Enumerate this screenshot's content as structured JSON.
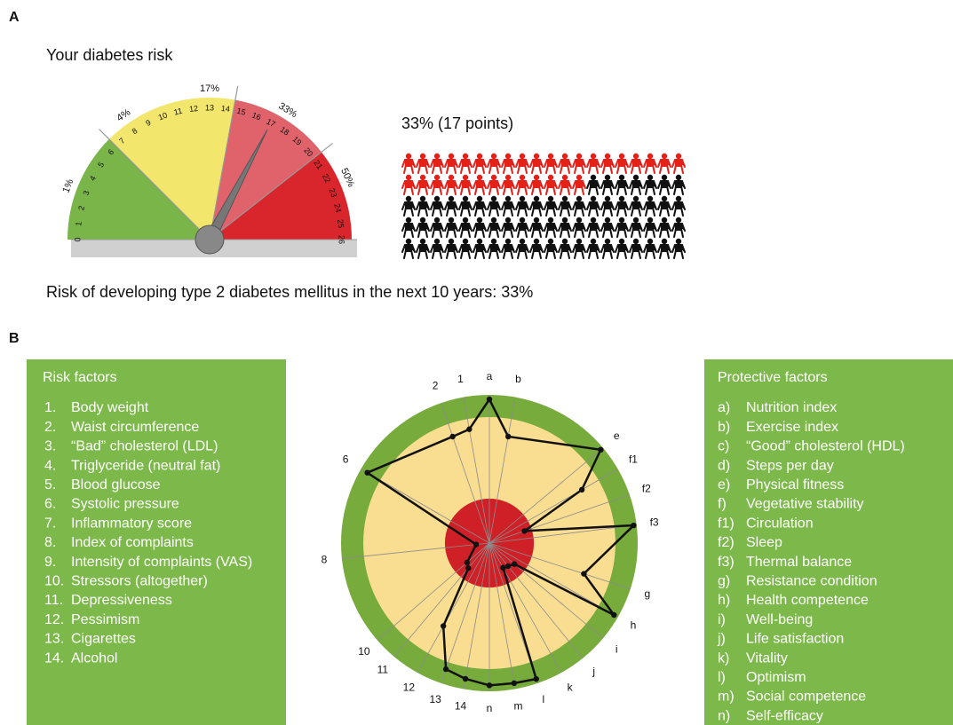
{
  "panel_a": {
    "label": "A",
    "title": "Your diabetes risk",
    "gauge": {
      "range": [
        0,
        26
      ],
      "ticks": [
        0,
        1,
        2,
        3,
        4,
        5,
        6,
        7,
        8,
        9,
        10,
        11,
        12,
        13,
        14,
        15,
        16,
        17,
        18,
        19,
        20,
        21,
        22,
        23,
        24,
        25,
        26
      ],
      "zone_bounds": [
        6.5,
        14.5,
        20.5
      ],
      "zone_colors": [
        "#79b548",
        "#f3e66c",
        "#e0626a",
        "#d8262c"
      ],
      "zone_labels": [
        {
          "value": 3,
          "label": "1%"
        },
        {
          "value": 8,
          "label": "4%"
        },
        {
          "value": 13,
          "label": "17%"
        },
        {
          "value": 17.5,
          "label": "33%"
        },
        {
          "value": 22.5,
          "label": "50%"
        }
      ],
      "needle": 17
    },
    "result": "33% (17 points)",
    "pictogram": {
      "total": 100,
      "highlighted": 33
    },
    "caption": "Risk of developing type 2 diabetes mellitus in the next 10 years: 33%"
  },
  "panel_b": {
    "label": "B",
    "risk_factors": {
      "title": "Risk factors",
      "items": [
        {
          "num": "1.",
          "text": "Body weight"
        },
        {
          "num": "2.",
          "text": "Waist circumference"
        },
        {
          "num": "3.",
          "text": "“Bad” cholesterol (LDL)"
        },
        {
          "num": "4.",
          "text": "Triglyceride (neutral fat)"
        },
        {
          "num": "5.",
          "text": "Blood glucose"
        },
        {
          "num": "6.",
          "text": "Systolic pressure"
        },
        {
          "num": "7.",
          "text": "Inflammatory score"
        },
        {
          "num": "8.",
          "text": "Index of complaints"
        },
        {
          "num": "9.",
          "text": "Intensity of complaints (VAS)"
        },
        {
          "num": "10.",
          "text": "Stressors (altogether)"
        },
        {
          "num": "11.",
          "text": "Depressiveness"
        },
        {
          "num": "12.",
          "text": "Pessimism"
        },
        {
          "num": "13.",
          "text": "Cigarettes"
        },
        {
          "num": "14.",
          "text": "Alcohol"
        }
      ]
    },
    "protective_factors": {
      "title": "Protective factors",
      "items": [
        {
          "num": "a)",
          "text": "Nutrition index"
        },
        {
          "num": "b)",
          "text": "Exercise index"
        },
        {
          "num": "c)",
          "text": "“Good” cholesterol (HDL)"
        },
        {
          "num": "d)",
          "text": "Steps per day"
        },
        {
          "num": "e)",
          "text": "Physical fitness"
        },
        {
          "num": "f)",
          "text": "Vegetative stability"
        },
        {
          "num": "f1)",
          "text": "Circulation"
        },
        {
          "num": "f2)",
          "text": "Sleep"
        },
        {
          "num": "f3)",
          "text": "Thermal balance"
        },
        {
          "num": "g)",
          "text": "Resistance condition"
        },
        {
          "num": "h)",
          "text": "Health competence"
        },
        {
          "num": "i)",
          "text": "Well-being"
        },
        {
          "num": "j)",
          "text": "Life satisfaction"
        },
        {
          "num": "k)",
          "text": "Vitality"
        },
        {
          "num": "l)",
          "text": "Optimism"
        },
        {
          "num": "m)",
          "text": "Social competence"
        },
        {
          "num": "n)",
          "text": "Self-efficacy"
        }
      ]
    },
    "radar": {
      "spokes": [
        "a",
        "b",
        "e",
        "f1",
        "f2",
        "f3",
        "g",
        "h",
        "i",
        "j",
        "k",
        "l",
        "m",
        "n",
        "14",
        "13",
        "12",
        "11",
        "10",
        "8",
        "6",
        "2",
        "1"
      ],
      "angles": [
        0,
        10,
        50,
        60,
        71,
        83,
        108,
        120,
        130,
        141,
        151,
        161,
        170,
        180,
        190,
        199,
        209,
        220,
        229,
        264,
        300,
        341,
        350
      ],
      "values": [
        97,
        73,
        98,
        72,
        25,
        98,
        67,
        97,
        22,
        20,
        19,
        97,
        96,
        96,
        93,
        90,
        64,
        22,
        20,
        9,
        95,
        76,
        78
      ],
      "rings": [
        30,
        85,
        100
      ]
    }
  }
}
